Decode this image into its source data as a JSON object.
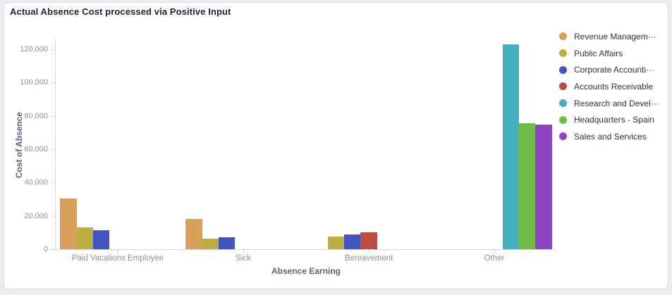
{
  "page": {
    "background": "#e9edf2",
    "card_border": "#d9dee3"
  },
  "header": {
    "title": "Actual Absence Cost processed via Positive Input"
  },
  "chart_data": {
    "type": "bar",
    "title": "Actual Absence Cost processed via Positive Input",
    "xlabel": "Absence Earning",
    "ylabel": "Cost of Absence",
    "categories": [
      "Paid Vacations Employee",
      "Sick",
      "Bereavement",
      "Other"
    ],
    "series": [
      {
        "name": "Revenue Managem···",
        "color": "#d9a05c",
        "values": [
          30500,
          18000,
          null,
          null
        ]
      },
      {
        "name": "Public Affairs",
        "color": "#bcaf40",
        "values": [
          13000,
          6500,
          7800,
          null
        ]
      },
      {
        "name": "Corporate Accounti···",
        "color": "#4355c0",
        "values": [
          11200,
          7000,
          9000,
          null
        ]
      },
      {
        "name": "Accounts Receivable",
        "color": "#bf4a3e",
        "values": [
          null,
          null,
          10300,
          null
        ]
      },
      {
        "name": "Research and Devel···",
        "color": "#41afc0",
        "values": [
          null,
          null,
          null,
          123000
        ]
      },
      {
        "name": "Headquarters - Spain",
        "color": "#6fbd45",
        "values": [
          null,
          null,
          null,
          75500
        ]
      },
      {
        "name": "Sales and Services",
        "color": "#8e44c2",
        "values": [
          null,
          null,
          null,
          74800
        ]
      }
    ],
    "ylim": [
      0,
      126000
    ],
    "y_ticks": {
      "values": [
        0,
        20000,
        40000,
        60000,
        80000,
        100000,
        120000
      ],
      "labels": [
        "0",
        "20,000",
        "40,000",
        "60,000",
        "80,000",
        "100,000",
        "120,000"
      ]
    },
    "legend_position": "right",
    "grid": false
  }
}
